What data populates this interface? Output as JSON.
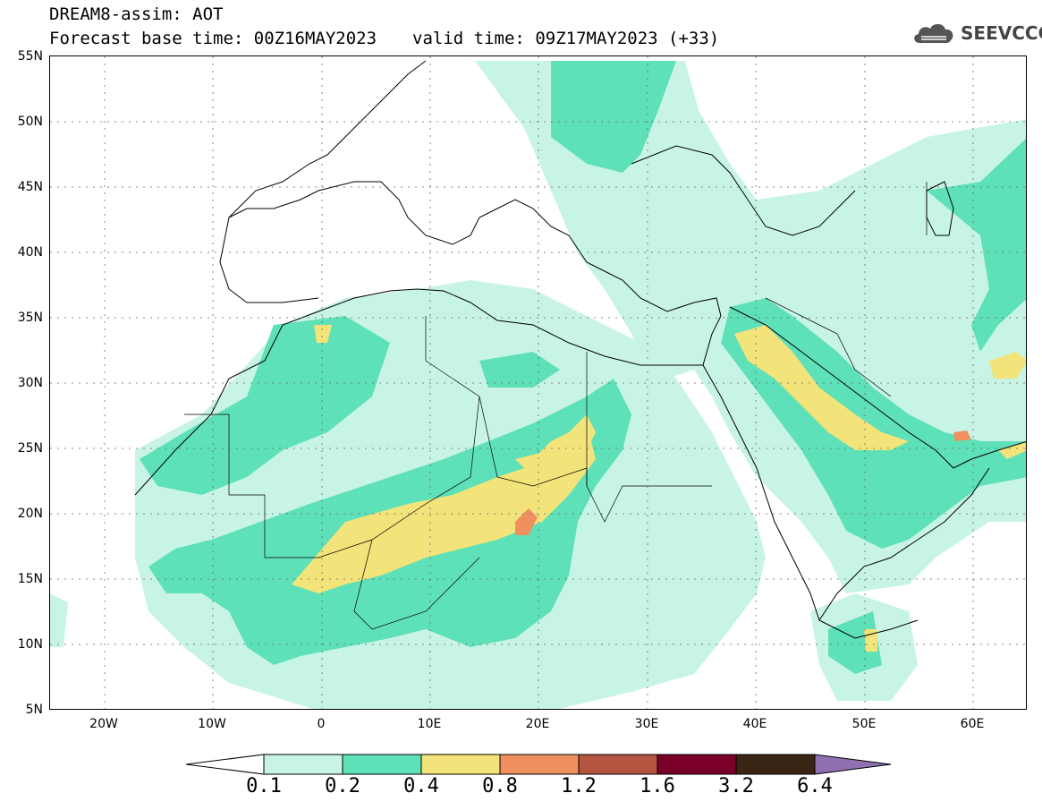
{
  "header": {
    "title_line1": "DREAM8-assim: AOT",
    "base_time": "Forecast base time: 00Z16MAY2023",
    "valid_time": "valid time: 09Z17MAY2023 (+33)"
  },
  "logo": {
    "text": "SEEVCCC",
    "icon": "cloud-icon"
  },
  "map": {
    "latitude_labels": [
      "55N",
      "50N",
      "45N",
      "40N",
      "35N",
      "30N",
      "25N",
      "20N",
      "15N",
      "10N",
      "5N"
    ],
    "longitude_labels": [
      "20W",
      "10W",
      "0",
      "10E",
      "20E",
      "30E",
      "40E",
      "50E",
      "60E"
    ],
    "lon_range": [
      -25,
      65
    ],
    "lat_range": [
      5,
      55
    ],
    "gridlines": "dotted"
  },
  "colorbar": {
    "levels": [
      "0.1",
      "0.2",
      "0.4",
      "0.8",
      "1.2",
      "1.6",
      "3.2",
      "6.4"
    ],
    "colors": [
      "#ffffff",
      "#c8f4e6",
      "#5ee0b8",
      "#f2e47a",
      "#ee9060",
      "#b35540",
      "#7a0028",
      "#3a2414",
      "#9070b0"
    ]
  }
}
